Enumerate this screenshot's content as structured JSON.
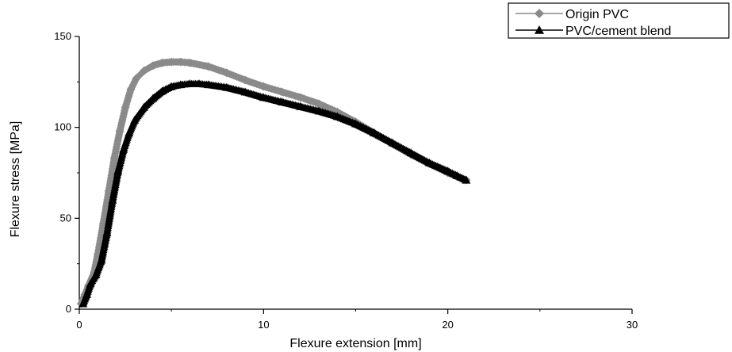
{
  "chart_data": {
    "type": "scatter",
    "title": "",
    "xlabel": "Flexure extension [mm]",
    "ylabel": "Flexure stress [MPa]",
    "xlim": [
      0,
      30
    ],
    "ylim": [
      0,
      150
    ],
    "xticks": [
      0,
      10,
      20,
      30
    ],
    "yticks": [
      0,
      50,
      100,
      150
    ],
    "grid": false,
    "legend_position": "top-right",
    "series": [
      {
        "name": "Origin PVC",
        "marker": "diamond",
        "color": "#8a8a8a",
        "x": [
          0.1,
          0.3,
          0.5,
          0.8,
          1.0,
          1.3,
          1.6,
          1.9,
          2.2,
          2.5,
          2.8,
          3.1,
          3.5,
          4.0,
          4.5,
          5.0,
          5.5,
          6.0,
          7.0,
          8.0,
          9.0,
          10.0,
          11.0,
          12.0,
          13.0,
          14.0,
          15.0,
          16.0,
          17.0,
          18.0,
          19.0,
          20.0,
          20.5,
          21.0
        ],
        "y": [
          3,
          8,
          13,
          20,
          30,
          47,
          65,
          83,
          98,
          111,
          121,
          127,
          131,
          134,
          135.5,
          136,
          136,
          135.5,
          133.5,
          130,
          126,
          122.5,
          119.5,
          116.5,
          113,
          108.5,
          103,
          97,
          91,
          85,
          80,
          75,
          73,
          71
        ]
      },
      {
        "name": "PVC/cement blend",
        "marker": "triangle-up",
        "color": "#000000",
        "x": [
          0.2,
          0.4,
          0.6,
          0.9,
          1.2,
          1.5,
          1.8,
          2.1,
          2.4,
          2.7,
          3.0,
          3.5,
          4.0,
          4.5,
          5.0,
          5.5,
          6.0,
          6.5,
          7.0,
          8.0,
          9.0,
          10.0,
          11.0,
          12.0,
          13.0,
          14.0,
          15.0,
          16.0,
          17.0,
          18.0,
          19.0,
          20.0,
          20.5,
          21.0
        ],
        "y": [
          3,
          8,
          14,
          19,
          27,
          42,
          60,
          76,
          88,
          97,
          104,
          111,
          116,
          120,
          122.5,
          123.5,
          124,
          124,
          123.5,
          122,
          119.5,
          116.5,
          114,
          111.5,
          109,
          106,
          102,
          97,
          91.5,
          86,
          80.5,
          76,
          73.5,
          71
        ]
      }
    ]
  }
}
